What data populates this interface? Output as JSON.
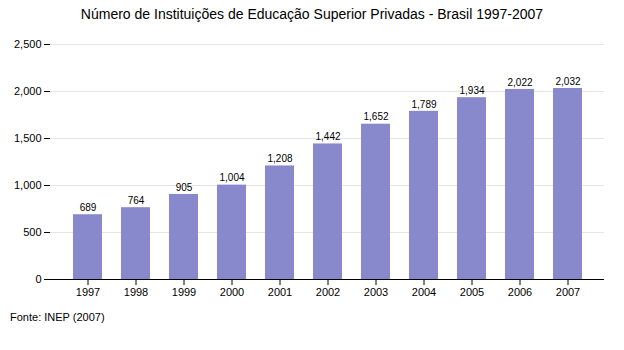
{
  "chart_data": {
    "type": "bar",
    "title": "Número de Instituições de Educação Superior Privadas - Brasil 1997-2007",
    "caption": "Fonte: INEP (2007)",
    "categories": [
      "1997",
      "1998",
      "1999",
      "2000",
      "2001",
      "2002",
      "2003",
      "2004",
      "2005",
      "2006",
      "2007"
    ],
    "values": [
      689,
      764,
      905,
      1004,
      1208,
      1442,
      1652,
      1789,
      1934,
      2022,
      2032
    ],
    "value_labels": [
      "689",
      "764",
      "905",
      "1,004",
      "1,208",
      "1,442",
      "1,652",
      "1,789",
      "1,934",
      "2,022",
      "2,032"
    ],
    "color": "#8888cc",
    "ylim": [
      0,
      2500
    ],
    "yticks": [
      0,
      500,
      {
        "value": 1000,
        "label": "1,000"
      },
      {
        "value": 1500,
        "label": "1,500"
      },
      {
        "value": 2000,
        "label": "2,000"
      },
      {
        "value": 2500,
        "label": "2,500"
      }
    ],
    "grid": true,
    "data_labels": true
  }
}
